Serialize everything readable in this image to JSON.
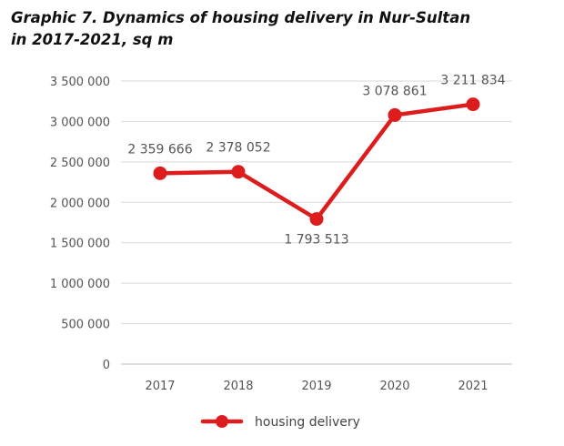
{
  "title_line1": "Graphic 7. Dynamics of housing delivery in Nur-Sultan",
  "title_line2": "in 2017-2021, sq m",
  "chart_data": {
    "type": "line",
    "title": "Graphic 7. Dynamics of housing delivery in Nur-Sultan in 2017-2021, sq m",
    "xlabel": "",
    "ylabel": "",
    "categories": [
      "2017",
      "2018",
      "2019",
      "2020",
      "2021"
    ],
    "series": [
      {
        "name": "housing delivery",
        "values": [
          2359666,
          2378052,
          1793513,
          3078861,
          3211834
        ],
        "value_labels": [
          "2 359 666",
          "2 378 052",
          "1 793 513",
          "3 078 861",
          "3 211 834"
        ],
        "color": "#dd1d1d"
      }
    ],
    "ylim": [
      0,
      3500000
    ],
    "yticks": [
      0,
      500000,
      1000000,
      1500000,
      2000000,
      2500000,
      3000000,
      3500000
    ],
    "ytick_labels": [
      "0",
      "500 000",
      "1 000 000",
      "1 500 000",
      "2 000 000",
      "2 500 000",
      "3 000 000",
      "3 500 000"
    ],
    "grid": true,
    "legend_position": "bottom-center"
  }
}
